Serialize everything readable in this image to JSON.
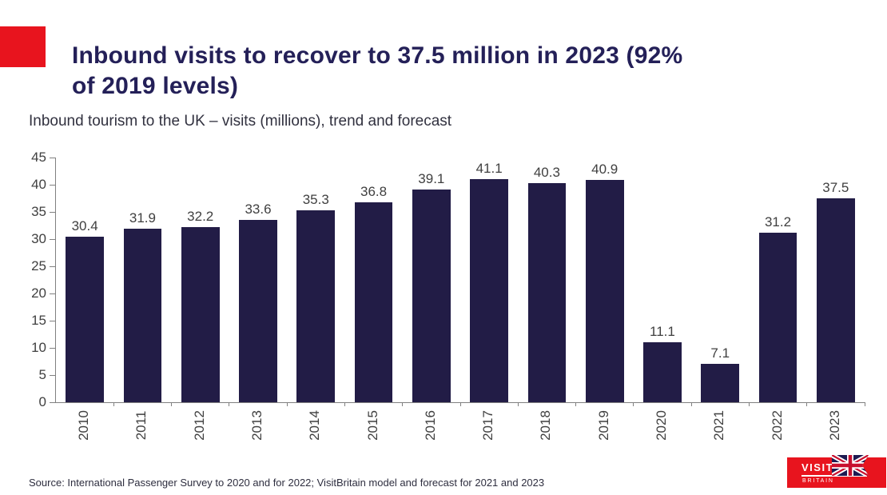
{
  "slide": {
    "title_lines": [
      "Inbound visits to recover to 37.5 million in 2023 (92%",
      "of 2019 levels)"
    ],
    "subtitle": "Inbound tourism to the UK – visits (millions), trend and forecast",
    "source": "Source: International Passenger Survey to 2020 and for 2022; VisitBritain model and forecast for 2021 and 2023"
  },
  "colors": {
    "accent_red": "#E8141E",
    "bar_navy": "#221C46",
    "title_navy": "#242058",
    "axis_gray": "#808080",
    "label_gray": "#404040",
    "flag_navy": "#1E1B52",
    "flag_red": "#C8102E"
  },
  "logo": {
    "line1": "VISIT",
    "line2": "BRITAIN"
  },
  "chart_data": {
    "type": "bar",
    "title": "Inbound tourism to the UK – visits (millions), trend and forecast",
    "categories": [
      "2010",
      "2011",
      "2012",
      "2013",
      "2014",
      "2015",
      "2016",
      "2017",
      "2018",
      "2019",
      "2020",
      "2021",
      "2022",
      "2023"
    ],
    "values": [
      30.4,
      31.9,
      32.2,
      33.6,
      35.3,
      36.8,
      39.1,
      41.1,
      40.3,
      40.9,
      11.1,
      7.1,
      31.2,
      37.5
    ],
    "xlabel": "",
    "ylabel": "",
    "ylim": [
      0,
      45
    ],
    "yticks": [
      0,
      5,
      10,
      15,
      20,
      25,
      30,
      35,
      40,
      45
    ],
    "bar_color": "#221C46",
    "grid": false,
    "legend": false,
    "value_labels": true,
    "x_tick_label_rotation": -90
  }
}
